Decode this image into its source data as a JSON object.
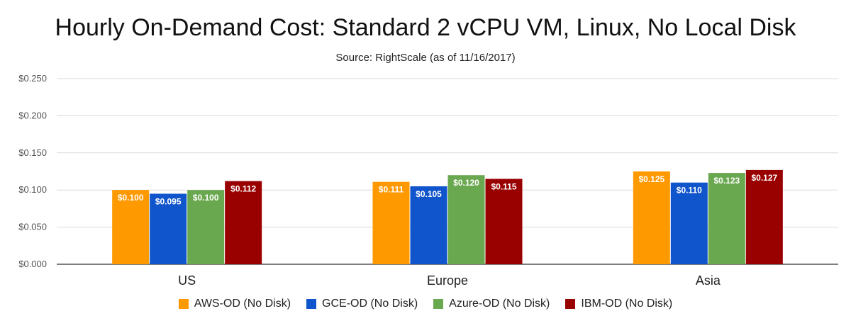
{
  "chart_data": {
    "type": "bar",
    "title": "Hourly On-Demand Cost: Standard 2 vCPU VM, Linux, No Local Disk",
    "subtitle": "Source: RightScale (as of 11/16/2017)",
    "xlabel": "",
    "ylabel": "",
    "categories": [
      "US",
      "Europe",
      "Asia"
    ],
    "ylim": [
      0,
      0.25
    ],
    "yticks": [
      "$0.000",
      "$0.050",
      "$0.100",
      "$0.150",
      "$0.200",
      "$0.250"
    ],
    "ytick_values": [
      0,
      0.05,
      0.1,
      0.15,
      0.2,
      0.25
    ],
    "grid": true,
    "legend_position": "bottom",
    "series": [
      {
        "name": "AWS-OD (No Disk)",
        "color": "#ff9900",
        "values": [
          0.1,
          0.111,
          0.125
        ],
        "labels": [
          "$0.100",
          "$0.111",
          "$0.125"
        ]
      },
      {
        "name": "GCE-OD (No Disk)",
        "color": "#1155cc",
        "values": [
          0.095,
          0.105,
          0.11
        ],
        "labels": [
          "$0.095",
          "$0.105",
          "$0.110"
        ]
      },
      {
        "name": "Azure-OD (No Disk)",
        "color": "#6aa84f",
        "values": [
          0.1,
          0.12,
          0.123
        ],
        "labels": [
          "$0.100",
          "$0.120",
          "$0.123"
        ]
      },
      {
        "name": "IBM-OD (No Disk)",
        "color": "#990000",
        "values": [
          0.112,
          0.115,
          0.127
        ],
        "labels": [
          "$0.112",
          "$0.115",
          "$0.127"
        ]
      }
    ]
  }
}
